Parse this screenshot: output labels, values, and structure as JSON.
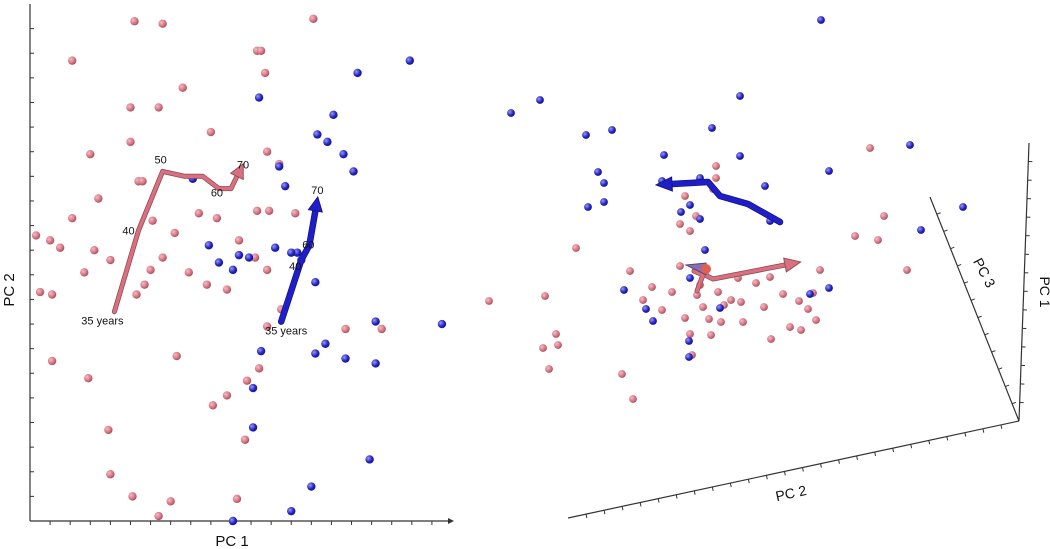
{
  "chart_data": [
    {
      "type": "scatter",
      "view": "2d",
      "title": "",
      "xlabel": "PC 1",
      "ylabel": "PC 2",
      "xlim": [
        -10,
        11
      ],
      "ylim": [
        -10,
        11
      ],
      "grid": false,
      "colors": {
        "group_pink": "#d9707f",
        "group_blue": "#1f1fc8",
        "axis": "#333333",
        "text": "#111111"
      },
      "series": [
        {
          "color": "#d9707f",
          "points": [
            [
              -4.8,
              10.3
            ],
            [
              -3.4,
              10.2
            ],
            [
              4.1,
              10.4
            ],
            [
              1.3,
              9.1
            ],
            [
              1.5,
              9.1
            ],
            [
              -7.9,
              8.7
            ],
            [
              1.7,
              8.2
            ],
            [
              -2.4,
              7.6
            ],
            [
              -3.6,
              6.8
            ],
            [
              -5.0,
              6.8
            ],
            [
              -1.0,
              5.8
            ],
            [
              -5.0,
              5.4
            ],
            [
              -7.0,
              4.9
            ],
            [
              1.8,
              5.0
            ],
            [
              2.4,
              4.5
            ],
            [
              -4.6,
              3.8
            ],
            [
              -4.4,
              3.8
            ],
            [
              -6.6,
              3.1
            ],
            [
              -7.9,
              2.3
            ],
            [
              -1.6,
              2.5
            ],
            [
              1.3,
              2.6
            ],
            [
              1.9,
              2.6
            ],
            [
              3.2,
              2.5
            ],
            [
              -3.9,
              2.2
            ],
            [
              -2.8,
              1.7
            ],
            [
              -0.7,
              2.3
            ],
            [
              -9.7,
              1.6
            ],
            [
              -8.5,
              1.1
            ],
            [
              -9.0,
              1.4
            ],
            [
              -6.8,
              1.0
            ],
            [
              -6.0,
              0.6
            ],
            [
              -3.4,
              0.7
            ],
            [
              0.4,
              1.4
            ],
            [
              -4.0,
              0.2
            ],
            [
              1.2,
              0.7
            ],
            [
              -2.1,
              0.1
            ],
            [
              -7.3,
              0.1
            ],
            [
              1.8,
              0.2
            ],
            [
              -4.3,
              -0.4
            ],
            [
              -1.2,
              -0.4
            ],
            [
              -8.9,
              -0.8
            ],
            [
              -9.5,
              -0.7
            ],
            [
              -0.2,
              -0.6
            ],
            [
              -4.7,
              -0.8
            ],
            [
              2.5,
              -1.4
            ],
            [
              1.8,
              -2.1
            ],
            [
              5.7,
              -2.2
            ],
            [
              7.5,
              -2.2
            ],
            [
              -8.9,
              -3.5
            ],
            [
              -2.7,
              -3.3
            ],
            [
              -7.1,
              -4.2
            ],
            [
              1.4,
              -3.8
            ],
            [
              0.8,
              -4.3
            ],
            [
              -0.2,
              -4.9
            ],
            [
              -0.9,
              -5.3
            ],
            [
              -6.1,
              -6.3
            ],
            [
              0.7,
              -6.7
            ],
            [
              -6.0,
              -8.1
            ],
            [
              -4.9,
              -9.0
            ],
            [
              -3.0,
              -9.2
            ],
            [
              -3.6,
              -9.8
            ],
            [
              0.3,
              -9.1
            ]
          ]
        },
        {
          "color": "#1f1fc8",
          "points": [
            [
              8.9,
              8.7
            ],
            [
              6.3,
              8.2
            ],
            [
              1.4,
              7.2
            ],
            [
              5.1,
              6.5
            ],
            [
              4.3,
              5.7
            ],
            [
              4.8,
              5.4
            ],
            [
              5.6,
              4.9
            ],
            [
              6.1,
              4.2
            ],
            [
              2.4,
              4.4
            ],
            [
              -1.9,
              3.9
            ],
            [
              2.7,
              3.6
            ],
            [
              -1.1,
              1.2
            ],
            [
              2.2,
              1.1
            ],
            [
              3.3,
              0.9
            ],
            [
              0.4,
              0.8
            ],
            [
              0.9,
              0.7
            ],
            [
              3.0,
              0.9
            ],
            [
              -0.6,
              0.5
            ],
            [
              3.5,
              0.6
            ],
            [
              0.1,
              0.2
            ],
            [
              4.2,
              -0.3
            ],
            [
              7.2,
              -1.9
            ],
            [
              10.5,
              -2.0
            ],
            [
              4.7,
              -2.8
            ],
            [
              4.2,
              -3.2
            ],
            [
              5.7,
              -3.4
            ],
            [
              7.2,
              -3.6
            ],
            [
              1.5,
              -3.1
            ],
            [
              1.1,
              -4.6
            ],
            [
              1.1,
              -6.2
            ],
            [
              6.9,
              -7.5
            ],
            [
              4.0,
              -8.6
            ],
            [
              3.0,
              -9.6
            ],
            [
              0.1,
              -10.0
            ]
          ]
        }
      ],
      "trajectories": [
        {
          "color": "#d9707f",
          "points": [
            [
              -5.8,
              -1.5
            ],
            [
              -4.6,
              1.8
            ],
            [
              -3.4,
              4.2
            ],
            [
              -2.3,
              4.0
            ],
            [
              -1.4,
              4.0
            ],
            [
              -0.6,
              3.5
            ],
            [
              0.0,
              3.5
            ],
            [
              0.3,
              4.0
            ]
          ],
          "labels": [
            {
              "at": 0,
              "text": "35 years"
            },
            {
              "at": 1,
              "text": "40"
            },
            {
              "at": 2,
              "text": "50"
            },
            {
              "at": 6,
              "text": "60"
            },
            {
              "at": 7,
              "text": "70"
            }
          ]
        },
        {
          "color": "#1f1fc8",
          "points": [
            [
              2.5,
              -1.9
            ],
            [
              3.5,
              0.6
            ],
            [
              3.9,
              1.2
            ],
            [
              4.2,
              2.6
            ]
          ],
          "labels": [
            {
              "at": 0,
              "text": "35 years"
            },
            {
              "at": 1,
              "text": "40"
            },
            {
              "at": 2,
              "text": "60"
            },
            {
              "at": 3,
              "text": "70"
            }
          ]
        }
      ]
    },
    {
      "type": "scatter",
      "view": "3d",
      "title": "",
      "axes": [
        "PC 2",
        "PC 3",
        "PC 1"
      ],
      "colors": {
        "group_pink": "#d9707f",
        "group_blue": "#1f1fc8",
        "axis": "#333333",
        "text": "#111111"
      },
      "series": [
        {
          "color": "#d9707f",
          "points": []
        },
        {
          "color": "#1f1fc8",
          "points": []
        }
      ]
    }
  ],
  "scene3d": {
    "pink_screen": [
      [
        489,
        301
      ],
      [
        545,
        296
      ],
      [
        556,
        334
      ],
      [
        543,
        348
      ],
      [
        558,
        345
      ],
      [
        549,
        369
      ],
      [
        576,
        248
      ],
      [
        622,
        374
      ],
      [
        633,
        399
      ],
      [
        630,
        271
      ],
      [
        643,
        300
      ],
      [
        652,
        287
      ],
      [
        662,
        310
      ],
      [
        672,
        292
      ],
      [
        685,
        318
      ],
      [
        690,
        334
      ],
      [
        692,
        355
      ],
      [
        700,
        285
      ],
      [
        697,
        295
      ],
      [
        703,
        307
      ],
      [
        709,
        319
      ],
      [
        711,
        335
      ],
      [
        721,
        322
      ],
      [
        724,
        305
      ],
      [
        718,
        292
      ],
      [
        731,
        300
      ],
      [
        738,
        278
      ],
      [
        741,
        302
      ],
      [
        743,
        322
      ],
      [
        756,
        283
      ],
      [
        764,
        307
      ],
      [
        770,
        277
      ],
      [
        771,
        339
      ],
      [
        783,
        294
      ],
      [
        790,
        327
      ],
      [
        799,
        301
      ],
      [
        801,
        330
      ],
      [
        808,
        309
      ],
      [
        816,
        320
      ],
      [
        820,
        270
      ],
      [
        813,
        293
      ],
      [
        716,
        166
      ],
      [
        716,
        178
      ],
      [
        696,
        216
      ],
      [
        685,
        196
      ],
      [
        680,
        224
      ],
      [
        690,
        231
      ],
      [
        713,
        189
      ],
      [
        855,
        236
      ],
      [
        870,
        148
      ],
      [
        878,
        240
      ],
      [
        884,
        216
      ],
      [
        907,
        270
      ],
      [
        680,
        266
      ]
    ],
    "blue_screen": [
      [
        821,
        20
      ],
      [
        511,
        113
      ],
      [
        540,
        100
      ],
      [
        740,
        96
      ],
      [
        586,
        135
      ],
      [
        612,
        130
      ],
      [
        712,
        128
      ],
      [
        664,
        155
      ],
      [
        740,
        156
      ],
      [
        598,
        172
      ],
      [
        604,
        183
      ],
      [
        588,
        207
      ],
      [
        604,
        202
      ],
      [
        662,
        181
      ],
      [
        700,
        178
      ],
      [
        765,
        186
      ],
      [
        829,
        171
      ],
      [
        910,
        145
      ],
      [
        963,
        207
      ],
      [
        921,
        230
      ],
      [
        770,
        221
      ],
      [
        690,
        205
      ],
      [
        681,
        212
      ],
      [
        700,
        219
      ],
      [
        705,
        250
      ],
      [
        690,
        278
      ],
      [
        624,
        290
      ],
      [
        646,
        309
      ],
      [
        653,
        321
      ],
      [
        720,
        308
      ],
      [
        689,
        341
      ],
      [
        689,
        357
      ],
      [
        810,
        294
      ],
      [
        829,
        288
      ]
    ],
    "pink_path": [
      [
        697,
        291
      ],
      [
        703,
        275
      ],
      [
        694,
        271
      ],
      [
        704,
        269
      ],
      [
        707,
        276
      ],
      [
        713,
        279
      ],
      [
        785,
        265
      ]
    ],
    "blue_path": [
      [
        780,
        222
      ],
      [
        748,
        204
      ],
      [
        720,
        196
      ],
      [
        708,
        182
      ],
      [
        672,
        184
      ]
    ]
  }
}
